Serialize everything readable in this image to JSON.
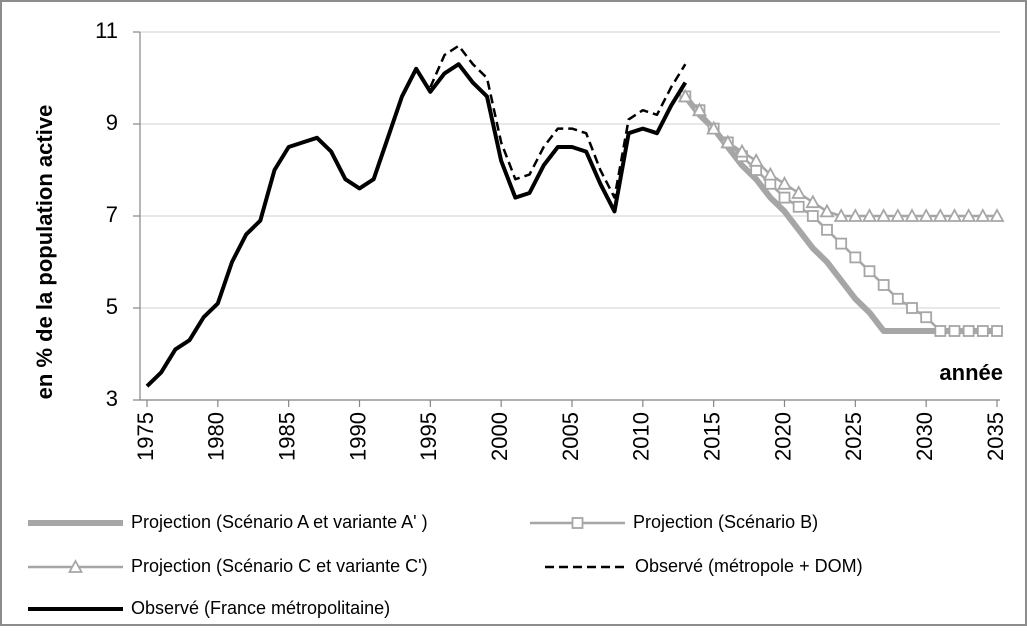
{
  "chart_data": {
    "type": "line",
    "ylabel": "en % de la population active",
    "annotation": "année",
    "xlim": [
      1975,
      2035
    ],
    "xticks": [
      1975,
      1980,
      1985,
      1990,
      1995,
      2000,
      2005,
      2010,
      2015,
      2020,
      2025,
      2030,
      2035
    ],
    "ylim": [
      3,
      11
    ],
    "yticks": [
      3,
      5,
      7,
      9,
      11
    ],
    "grid": true,
    "x": [
      1975,
      1976,
      1977,
      1978,
      1979,
      1980,
      1981,
      1982,
      1983,
      1984,
      1985,
      1986,
      1987,
      1988,
      1989,
      1990,
      1991,
      1992,
      1993,
      1994,
      1995,
      1996,
      1997,
      1998,
      1999,
      2000,
      2001,
      2002,
      2003,
      2004,
      2005,
      2006,
      2007,
      2008,
      2009,
      2010,
      2011,
      2012,
      2013,
      2014,
      2015,
      2016,
      2017,
      2018,
      2019,
      2020,
      2021,
      2022,
      2023,
      2024,
      2025,
      2026,
      2027,
      2028,
      2029,
      2030,
      2031,
      2032,
      2033,
      2034,
      2035
    ],
    "series": [
      {
        "name": "Projection (Scénario A et variante A' )",
        "color": "#a6a6a6",
        "width": 6,
        "dash": false,
        "marker": "none",
        "values": [
          null,
          null,
          null,
          null,
          null,
          null,
          null,
          null,
          null,
          null,
          null,
          null,
          null,
          null,
          null,
          null,
          null,
          null,
          null,
          null,
          null,
          null,
          null,
          null,
          null,
          null,
          null,
          null,
          null,
          null,
          null,
          null,
          null,
          null,
          null,
          null,
          null,
          null,
          9.6,
          9.2,
          8.9,
          8.5,
          8.1,
          7.8,
          7.4,
          7.1,
          6.7,
          6.3,
          6.0,
          5.6,
          5.2,
          4.9,
          4.5,
          4.5,
          4.5,
          4.5,
          4.5,
          4.5,
          4.5,
          4.5,
          4.5
        ]
      },
      {
        "name": "Projection (Scénario B)",
        "color": "#a6a6a6",
        "width": 2.5,
        "dash": false,
        "marker": "square",
        "values": [
          null,
          null,
          null,
          null,
          null,
          null,
          null,
          null,
          null,
          null,
          null,
          null,
          null,
          null,
          null,
          null,
          null,
          null,
          null,
          null,
          null,
          null,
          null,
          null,
          null,
          null,
          null,
          null,
          null,
          null,
          null,
          null,
          null,
          null,
          null,
          null,
          null,
          null,
          9.6,
          9.3,
          8.9,
          8.6,
          8.3,
          8.0,
          7.7,
          7.4,
          7.2,
          7.0,
          6.7,
          6.4,
          6.1,
          5.8,
          5.5,
          5.2,
          5.0,
          4.8,
          4.5,
          4.5,
          4.5,
          4.5,
          4.5
        ]
      },
      {
        "name": "Projection (Scénario C et variante C')",
        "color": "#a6a6a6",
        "width": 2.5,
        "dash": false,
        "marker": "triangle",
        "values": [
          null,
          null,
          null,
          null,
          null,
          null,
          null,
          null,
          null,
          null,
          null,
          null,
          null,
          null,
          null,
          null,
          null,
          null,
          null,
          null,
          null,
          null,
          null,
          null,
          null,
          null,
          null,
          null,
          null,
          null,
          null,
          null,
          null,
          null,
          null,
          null,
          null,
          null,
          9.6,
          9.3,
          8.9,
          8.6,
          8.4,
          8.2,
          7.9,
          7.7,
          7.5,
          7.3,
          7.1,
          7.0,
          7.0,
          7.0,
          7.0,
          7.0,
          7.0,
          7.0,
          7.0,
          7.0,
          7.0,
          7.0,
          7.0
        ]
      },
      {
        "name": "Observé (métropole + DOM)",
        "color": "#000000",
        "width": 2.5,
        "dash": true,
        "marker": "none",
        "values": [
          null,
          null,
          null,
          null,
          null,
          null,
          null,
          null,
          null,
          null,
          null,
          null,
          null,
          null,
          null,
          null,
          null,
          null,
          null,
          null,
          9.8,
          10.5,
          10.7,
          10.3,
          10.0,
          8.6,
          7.8,
          7.9,
          8.5,
          8.9,
          8.9,
          8.8,
          8.0,
          7.4,
          9.1,
          9.3,
          9.2,
          9.8,
          10.3,
          null,
          null,
          null,
          null,
          null,
          null,
          null,
          null,
          null,
          null,
          null,
          null,
          null,
          null,
          null,
          null,
          null,
          null,
          null,
          null,
          null,
          null
        ]
      },
      {
        "name": "Observé (France métropolitaine)",
        "color": "#000000",
        "width": 4,
        "dash": false,
        "marker": "none",
        "values": [
          3.3,
          3.6,
          4.1,
          4.3,
          4.8,
          5.1,
          6.0,
          6.6,
          6.9,
          8.0,
          8.5,
          8.6,
          8.7,
          8.4,
          7.8,
          7.6,
          7.8,
          8.7,
          9.6,
          10.2,
          9.7,
          10.1,
          10.3,
          9.9,
          9.6,
          8.2,
          7.4,
          7.5,
          8.1,
          8.5,
          8.5,
          8.4,
          7.7,
          7.1,
          8.8,
          8.9,
          8.8,
          9.4,
          9.9,
          null,
          null,
          null,
          null,
          null,
          null,
          null,
          null,
          null,
          null,
          null,
          null,
          null,
          null,
          null,
          null,
          null,
          null,
          null,
          null,
          null,
          null
        ]
      }
    ]
  }
}
